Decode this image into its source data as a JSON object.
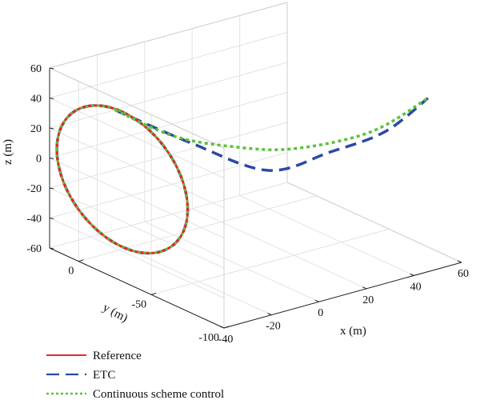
{
  "chart_data": {
    "type": "line3d",
    "title": "",
    "xlabel": "x (m)",
    "ylabel": "y (m)",
    "zlabel": "z (m)",
    "xlim": [
      -40,
      60
    ],
    "ylim": [
      -100,
      20
    ],
    "zlim": [
      -60,
      60
    ],
    "x_ticks": [
      "-40",
      "-20",
      "0",
      "20",
      "40",
      "60"
    ],
    "y_ticks": [
      "-100",
      "-50",
      "0"
    ],
    "z_ticks": [
      "-60",
      "-40",
      "-20",
      "0",
      "20",
      "40",
      "60"
    ],
    "grid": true,
    "legend_position": "bottom-left",
    "colors": {
      "reference": "#e8262a",
      "etc": "#2a4aa6",
      "continuous": "#5cc23a"
    },
    "series": [
      {
        "name": "Reference",
        "style": "solid",
        "shape": "circle in the x = -40 plane",
        "center": {
          "y": -30,
          "z": 8
        },
        "radius": 45
      },
      {
        "name": "ETC",
        "style": "dashed",
        "circle_part": "same circle as Reference",
        "tail": [
          {
            "x": -40,
            "y": -25,
            "z": 52
          },
          {
            "x": -20,
            "y": -45,
            "z": 30
          },
          {
            "x": 0,
            "y": -65,
            "z": 12
          },
          {
            "x": 20,
            "y": -75,
            "z": 20
          },
          {
            "x": 40,
            "y": -80,
            "z": 27
          },
          {
            "x": 55,
            "y": -85,
            "z": 45
          }
        ]
      },
      {
        "name": "Continuous scheme control",
        "style": "dotted",
        "circle_part": "same circle as Reference",
        "tail": [
          {
            "x": -40,
            "y": -25,
            "z": 52
          },
          {
            "x": -25,
            "y": -40,
            "z": 35
          },
          {
            "x": -10,
            "y": -55,
            "z": 28
          },
          {
            "x": 10,
            "y": -65,
            "z": 22
          },
          {
            "x": 35,
            "y": -78,
            "z": 28
          },
          {
            "x": 55,
            "y": -85,
            "z": 45
          }
        ]
      }
    ]
  }
}
